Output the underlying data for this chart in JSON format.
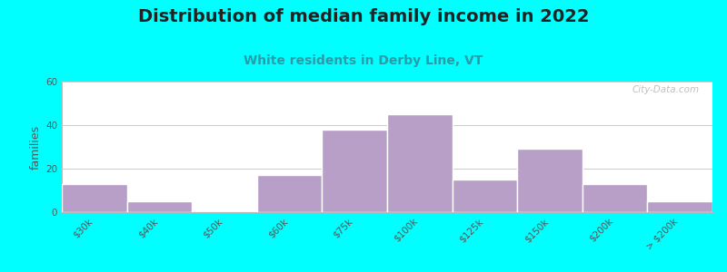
{
  "title": "Distribution of median family income in 2022",
  "subtitle": "White residents in Derby Line, VT",
  "ylabel": "families",
  "background_outer": "#00FFFF",
  "bar_color": "#b89fc8",
  "bar_edge_color": "#ffffff",
  "categories": [
    "$30k",
    "$40k",
    "$50k",
    "$60k",
    "$75k",
    "$100k",
    "$125k",
    "$150k",
    "$200k",
    "> $200k"
  ],
  "values": [
    13,
    5,
    0,
    17,
    38,
    45,
    15,
    29,
    13,
    5
  ],
  "ylim": [
    0,
    60
  ],
  "yticks": [
    0,
    20,
    40,
    60
  ],
  "title_fontsize": 14,
  "title_color": "#222222",
  "subtitle_fontsize": 10,
  "subtitle_color": "#2a9ba8",
  "ylabel_fontsize": 9,
  "tick_fontsize": 7.5,
  "watermark": "City-Data.com",
  "grad_top": "#d8f0d0",
  "grad_bottom": "#ffffff"
}
